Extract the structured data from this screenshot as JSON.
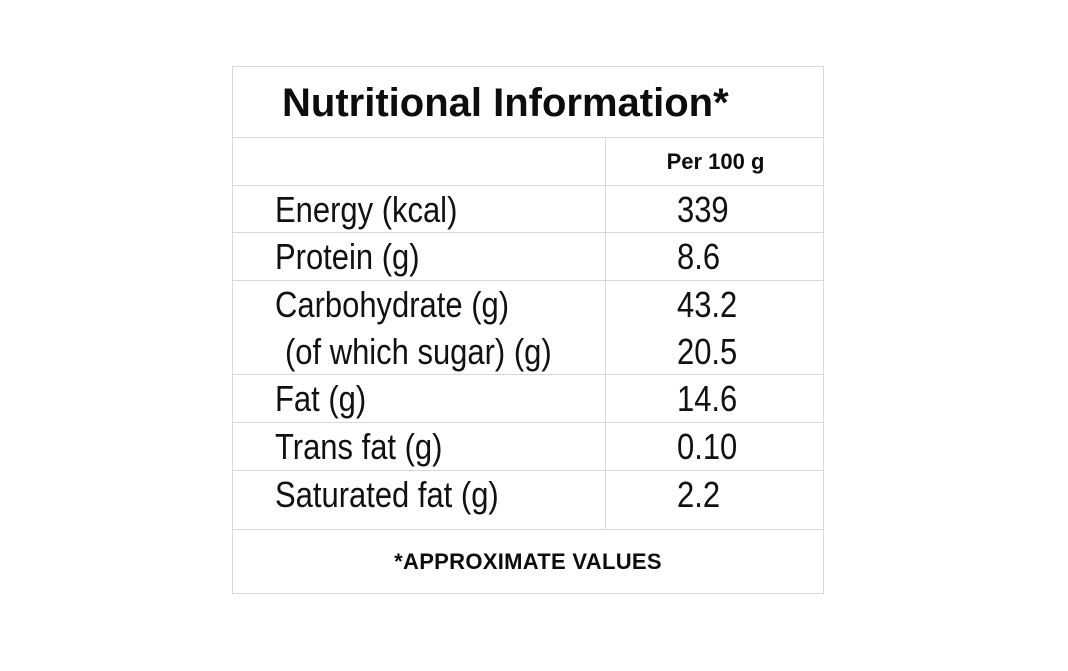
{
  "panel": {
    "title": "Nutritional Information*",
    "column_header": "Per 100 g",
    "rows": [
      {
        "nutrient": "Energy (kcal)",
        "value": "339"
      },
      {
        "nutrient": "Protein (g)",
        "value": "8.6"
      },
      {
        "nutrient": "Carbohydrate (g)",
        "value": "43.2"
      },
      {
        "nutrient": "(of which sugar) (g)",
        "value": "20.5"
      },
      {
        "nutrient": "Fat (g)",
        "value": "14.6"
      },
      {
        "nutrient": "Trans fat (g)",
        "value": "0.10"
      },
      {
        "nutrient": "Saturated fat (g)",
        "value": "2.2"
      }
    ],
    "footnote": "*APPROXIMATE VALUES"
  },
  "colors": {
    "text": "#111111",
    "grid": "#d8d8d8",
    "background": "#ffffff"
  }
}
